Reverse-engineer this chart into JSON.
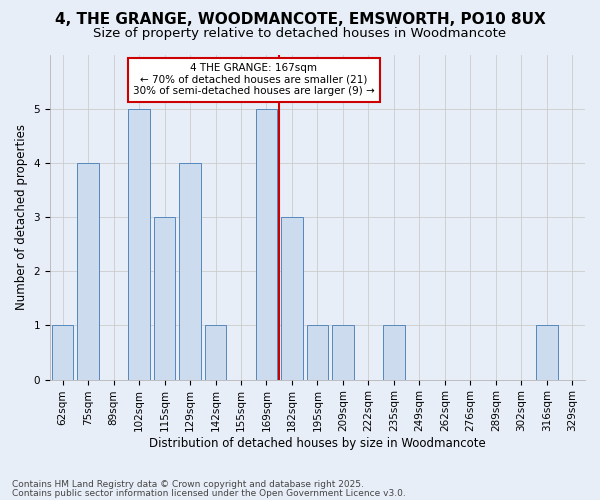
{
  "title": "4, THE GRANGE, WOODMANCOTE, EMSWORTH, PO10 8UX",
  "subtitle": "Size of property relative to detached houses in Woodmancote",
  "xlabel": "Distribution of detached houses by size in Woodmancote",
  "ylabel": "Number of detached properties",
  "categories": [
    "62sqm",
    "75sqm",
    "89sqm",
    "102sqm",
    "115sqm",
    "129sqm",
    "142sqm",
    "155sqm",
    "169sqm",
    "182sqm",
    "195sqm",
    "209sqm",
    "222sqm",
    "235sqm",
    "249sqm",
    "262sqm",
    "276sqm",
    "289sqm",
    "302sqm",
    "316sqm",
    "329sqm"
  ],
  "values": [
    1,
    4,
    0,
    5,
    3,
    4,
    1,
    0,
    5,
    3,
    1,
    1,
    0,
    1,
    0,
    0,
    0,
    0,
    0,
    1,
    0
  ],
  "bar_color": "#ccdcee",
  "bar_edge_color": "#5588bb",
  "highlight_index": 8,
  "highlight_line_color": "#cc0000",
  "annotation_text": "4 THE GRANGE: 167sqm\n← 70% of detached houses are smaller (21)\n30% of semi-detached houses are larger (9) →",
  "annotation_box_color": "#ffffff",
  "annotation_box_edge": "#cc0000",
  "ylim": [
    0,
    6
  ],
  "yticks": [
    0,
    1,
    2,
    3,
    4,
    5
  ],
  "background_color": "#e8eef8",
  "grid_color": "#cccccc",
  "footer_line1": "Contains HM Land Registry data © Crown copyright and database right 2025.",
  "footer_line2": "Contains public sector information licensed under the Open Government Licence v3.0.",
  "title_fontsize": 11,
  "subtitle_fontsize": 9.5,
  "axis_label_fontsize": 8.5,
  "tick_fontsize": 7.5,
  "annotation_fontsize": 7.5,
  "footer_fontsize": 6.5
}
